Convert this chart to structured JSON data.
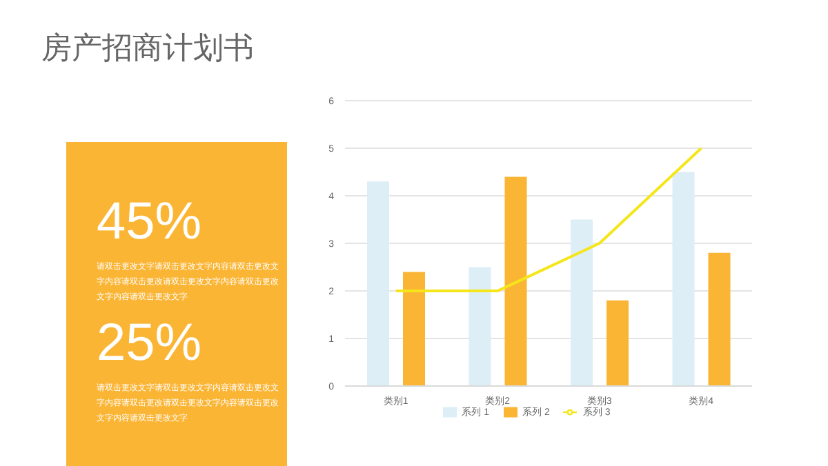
{
  "chart_data": [
    {
      "type": "other",
      "title": "房产招商计划书",
      "color": "#fbb535",
      "annotations": [
        "45%",
        "请双击更改文字请双击更改文字内容请双击更改文字内容请双击更改请双击更改文字内容请双击更改文字内容请双击更改文字",
        "25%",
        "请双击更改文字请双击更改文字内容请双击更改文字内容请双击更改请双击更改文字内容请双击更改文字内容请双击更改文字"
      ]
    },
    {
      "type": "bar",
      "categories": [
        "类别1",
        "类别2",
        "类别3",
        "类别4"
      ],
      "series": [
        {
          "name": "系列 1",
          "color": "#ddeef7",
          "values": [
            4.3,
            2.5,
            3.5,
            4.5
          ]
        },
        {
          "name": "系列 2",
          "color": "#fbb535",
          "values": [
            2.4,
            4.4,
            1.8,
            2.8
          ]
        },
        {
          "name": "系列 3",
          "color": "#f5e61a",
          "type": "line",
          "values": [
            2,
            2,
            3,
            5
          ]
        }
      ],
      "ylim": [
        0,
        6
      ],
      "yticks": [
        0,
        1,
        2,
        3,
        4,
        5,
        6
      ],
      "grid": "y",
      "legend": "bottom",
      "marker": "none"
    }
  ]
}
